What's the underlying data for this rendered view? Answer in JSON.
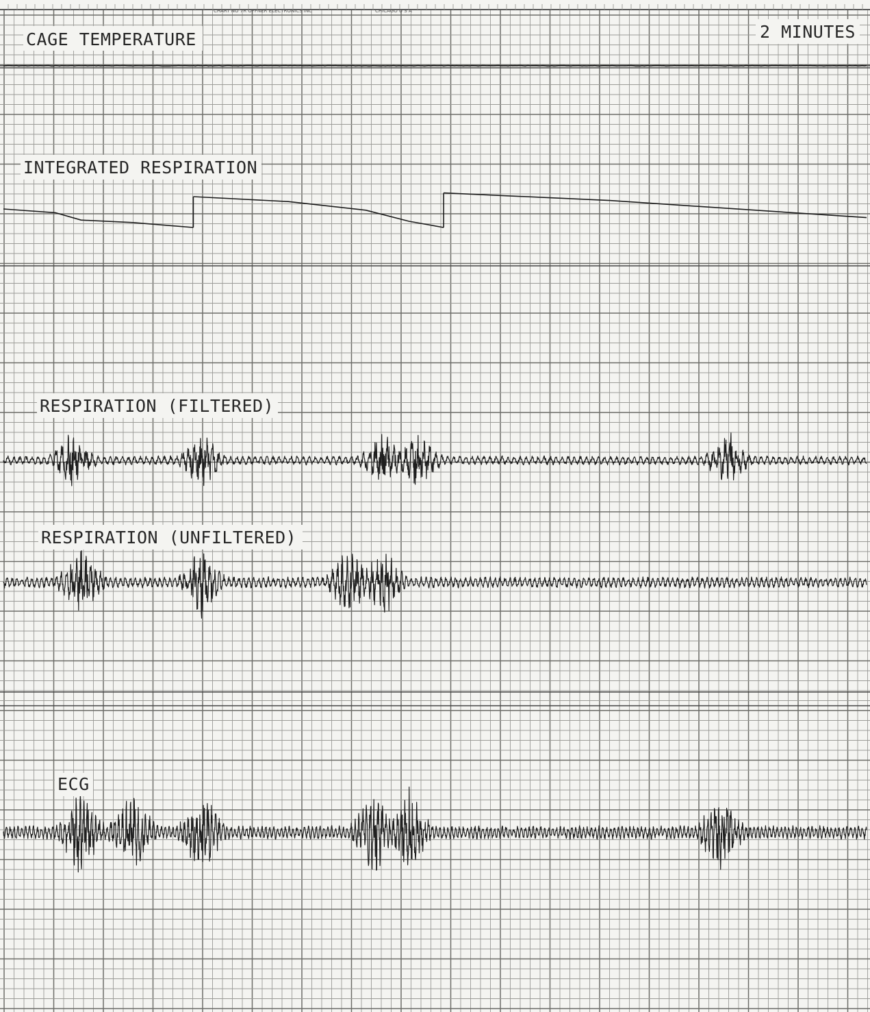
{
  "paper_header": {
    "stamp_left": "CHART NO 7R OFFNER ELECTRONICS INC",
    "stamp_right": "CHICAGO U S A"
  },
  "time_scale_label": "2 MINUTES",
  "colors": {
    "paper": "#f4f4f1",
    "grid": "#9a9a96",
    "trace": "#1a1a1a"
  },
  "chart_data": {
    "type": "line",
    "title": "",
    "x_scale": "2 MINUTES",
    "channels": [
      {
        "name": "CAGE TEMPERATURE",
        "shape": "flat",
        "y": [
          0,
          0,
          0,
          0,
          0
        ]
      },
      {
        "name": "INTEGRATED RESPIRATION",
        "shape": "sawtooth with resets",
        "resets_at_fraction": [
          0.22,
          0.51
        ],
        "segments": [
          {
            "x": [
              0.0,
              0.06,
              0.09,
              0.15,
              0.22
            ],
            "y": [
              0.0,
              -0.15,
              -0.45,
              -0.55,
              -0.75
            ]
          },
          {
            "x": [
              0.22,
              0.33,
              0.42,
              0.47,
              0.51
            ],
            "y": [
              0.5,
              0.3,
              -0.05,
              -0.5,
              -0.75
            ]
          },
          {
            "x": [
              0.51,
              0.7,
              1.0
            ],
            "y": [
              0.65,
              0.35,
              -0.35
            ]
          }
        ]
      },
      {
        "name": "RESPIRATION (FILTERED)",
        "shape": "oscillation",
        "events_at_fraction": [
          0.08,
          0.23,
          0.44,
          0.48,
          0.84
        ]
      },
      {
        "name": "RESPIRATION (UNFILTERED)",
        "shape": "oscillation",
        "events_at_fraction": [
          0.09,
          0.23,
          0.4,
          0.44
        ]
      },
      {
        "name": "ECG",
        "shape": "oscillation",
        "events_at_fraction": [
          0.09,
          0.15,
          0.23,
          0.43,
          0.47,
          0.83
        ]
      }
    ]
  }
}
